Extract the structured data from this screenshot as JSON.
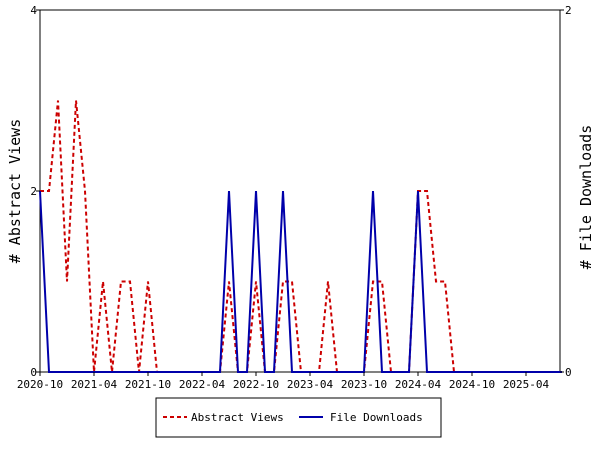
{
  "chart_data": {
    "type": "line",
    "title": "",
    "xlabel": "",
    "ylabel": "# Abstract Views",
    "y2label": "# File Downloads",
    "x": [
      "2020-10",
      "2020-11",
      "2020-12",
      "2021-01",
      "2021-02",
      "2021-03",
      "2021-04",
      "2021-05",
      "2021-06",
      "2021-07",
      "2021-08",
      "2021-09",
      "2021-10",
      "2021-11",
      "2021-12",
      "2022-01",
      "2022-02",
      "2022-03",
      "2022-04",
      "2022-05",
      "2022-06",
      "2022-07",
      "2022-08",
      "2022-09",
      "2022-10",
      "2022-11",
      "2022-12",
      "2023-01",
      "2023-02",
      "2023-03",
      "2023-04",
      "2023-05",
      "2023-06",
      "2023-07",
      "2023-08",
      "2023-09",
      "2023-10",
      "2023-11",
      "2023-12",
      "2024-01",
      "2024-02",
      "2024-03",
      "2024-04",
      "2024-05",
      "2024-06",
      "2024-07",
      "2024-08",
      "2024-09",
      "2024-10",
      "2024-11",
      "2024-12",
      "2025-01",
      "2025-02",
      "2025-03",
      "2025-04",
      "2025-05",
      "2025-06",
      "2025-07",
      "2025-08"
    ],
    "xticks": [
      "2020-10",
      "2021-04",
      "2021-10",
      "2022-04",
      "2022-10",
      "2023-04",
      "2023-10",
      "2024-04",
      "2024-10",
      "2025-04"
    ],
    "ylim": [
      0,
      4
    ],
    "yticks": [
      0,
      2,
      4
    ],
    "y2lim": [
      0,
      2
    ],
    "y2ticks": [
      0,
      2
    ],
    "series": [
      {
        "name": "Abstract Views",
        "axis": "left",
        "color": "#cc0000",
        "dash": "dashed",
        "values": [
          2,
          2,
          3,
          1,
          3,
          2,
          0,
          1,
          0,
          1,
          1,
          0,
          1,
          0,
          0,
          0,
          0,
          0,
          0,
          0,
          0,
          1,
          0,
          0,
          1,
          0,
          0,
          1,
          1,
          0,
          0,
          0,
          1,
          0,
          0,
          0,
          0,
          1,
          1,
          0,
          0,
          0,
          2,
          2,
          1,
          1,
          0,
          0,
          0,
          0,
          0,
          0,
          0,
          0,
          0,
          0,
          0,
          0,
          0
        ]
      },
      {
        "name": "File Downloads",
        "axis": "right",
        "color": "#0000aa",
        "dash": "solid",
        "values": [
          1,
          0,
          0,
          0,
          0,
          0,
          0,
          0,
          0,
          0,
          0,
          0,
          0,
          0,
          0,
          0,
          0,
          0,
          0,
          0,
          0,
          1,
          0,
          0,
          1,
          0,
          0,
          1,
          0,
          0,
          0,
          0,
          0,
          0,
          0,
          0,
          0,
          1,
          0,
          0,
          0,
          0,
          1,
          0,
          0,
          0,
          0,
          0,
          0,
          0,
          0,
          0,
          0,
          0,
          0,
          0,
          0,
          0,
          0
        ]
      }
    ],
    "grid": false,
    "legend_position": "bottom"
  }
}
